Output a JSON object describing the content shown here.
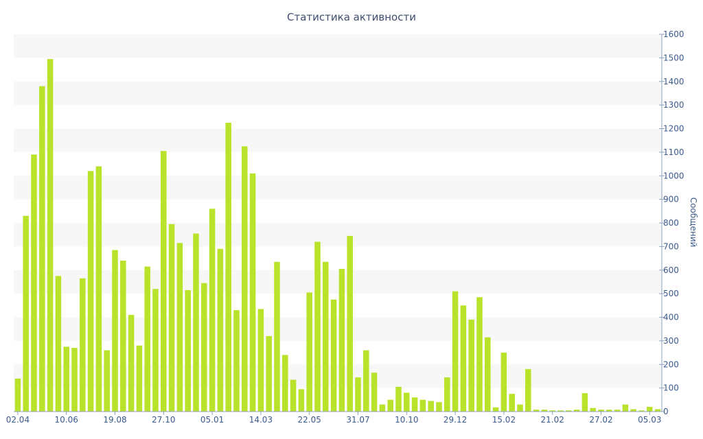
{
  "chart_data": {
    "type": "bar",
    "title": "Статистика активности",
    "xlabel": "",
    "ylabel": "Сообщений",
    "ylim": [
      0,
      1600
    ],
    "yticks": [
      0,
      100,
      200,
      300,
      400,
      500,
      600,
      700,
      800,
      900,
      1000,
      1100,
      1200,
      1300,
      1400,
      1500,
      1600
    ],
    "y_axis_position": "right",
    "grid": "alternating horizontal bands",
    "xtick_labels": [
      {
        "index": 0,
        "label": "02.04"
      },
      {
        "index": 6,
        "label": "10.06"
      },
      {
        "index": 12,
        "label": "19.08"
      },
      {
        "index": 18,
        "label": "27.10"
      },
      {
        "index": 24,
        "label": "05.01"
      },
      {
        "index": 30,
        "label": "14.03"
      },
      {
        "index": 36,
        "label": "22.05"
      },
      {
        "index": 42,
        "label": "31.07"
      },
      {
        "index": 48,
        "label": "10.10"
      },
      {
        "index": 54,
        "label": "29.12"
      },
      {
        "index": 60,
        "label": "15.02"
      },
      {
        "index": 66,
        "label": "21.02"
      },
      {
        "index": 72,
        "label": "27.02"
      },
      {
        "index": 78,
        "label": "05.03"
      }
    ],
    "bar_color": "#b9e22a",
    "values": [
      140,
      830,
      1090,
      1380,
      1495,
      575,
      275,
      270,
      565,
      1020,
      1040,
      260,
      685,
      640,
      410,
      280,
      615,
      520,
      1105,
      795,
      715,
      515,
      755,
      545,
      860,
      690,
      1225,
      430,
      1125,
      1010,
      435,
      320,
      635,
      240,
      135,
      95,
      505,
      720,
      635,
      475,
      605,
      745,
      145,
      260,
      165,
      30,
      50,
      105,
      80,
      60,
      50,
      45,
      40,
      145,
      510,
      450,
      390,
      485,
      315,
      18,
      250,
      75,
      30,
      180,
      8,
      8,
      5,
      5,
      5,
      8,
      78,
      15,
      8,
      8,
      8,
      30,
      10,
      5,
      20,
      10
    ]
  }
}
